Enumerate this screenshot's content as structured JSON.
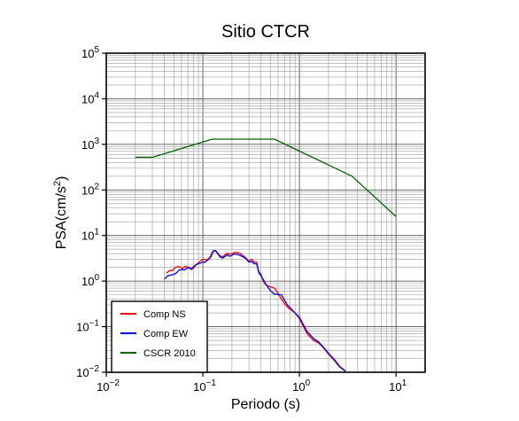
{
  "chart_data": {
    "type": "line",
    "title": "Sitio CTCR",
    "xlabel": "Periodo (s)",
    "ylabel": {
      "base": "PSA(cm/s",
      "sup": "2",
      "tail": ")"
    },
    "x_scale": "log",
    "y_scale": "log",
    "xlim": [
      0.01,
      20
    ],
    "ylim": [
      0.01,
      100000
    ],
    "grid": true,
    "legend_position": "bottom-left",
    "x_ticks": [
      {
        "value": 0.01,
        "base": "10",
        "exp": "−2"
      },
      {
        "value": 0.1,
        "base": "10",
        "exp": "−1"
      },
      {
        "value": 1,
        "base": "10",
        "exp": "0"
      },
      {
        "value": 10,
        "base": "10",
        "exp": "1"
      }
    ],
    "y_ticks": [
      {
        "value": 0.01,
        "base": "10",
        "exp": "−2"
      },
      {
        "value": 0.1,
        "base": "10",
        "exp": "−1"
      },
      {
        "value": 1,
        "base": "10",
        "exp": "0"
      },
      {
        "value": 10,
        "base": "10",
        "exp": "1"
      },
      {
        "value": 100,
        "base": "10",
        "exp": "2"
      },
      {
        "value": 1000,
        "base": "10",
        "exp": "3"
      },
      {
        "value": 10000,
        "base": "10",
        "exp": "4"
      },
      {
        "value": 100000,
        "base": "10",
        "exp": "5"
      }
    ],
    "series": [
      {
        "name": "Comp NS",
        "color": "#ff0000",
        "points": [
          [
            0.042,
            1.5
          ],
          [
            0.045,
            1.7
          ],
          [
            0.048,
            1.7
          ],
          [
            0.052,
            2.0
          ],
          [
            0.055,
            2.1
          ],
          [
            0.058,
            2.0
          ],
          [
            0.062,
            1.9
          ],
          [
            0.066,
            2.1
          ],
          [
            0.07,
            2.0
          ],
          [
            0.075,
            1.85
          ],
          [
            0.08,
            2.1
          ],
          [
            0.085,
            2.3
          ],
          [
            0.09,
            2.5
          ],
          [
            0.095,
            2.8
          ],
          [
            0.1,
            3.0
          ],
          [
            0.105,
            3.0
          ],
          [
            0.11,
            2.9
          ],
          [
            0.115,
            3.1
          ],
          [
            0.12,
            3.5
          ],
          [
            0.125,
            4.3
          ],
          [
            0.13,
            4.6
          ],
          [
            0.135,
            4.7
          ],
          [
            0.14,
            4.3
          ],
          [
            0.15,
            3.6
          ],
          [
            0.16,
            3.4
          ],
          [
            0.17,
            3.8
          ],
          [
            0.18,
            4.1
          ],
          [
            0.19,
            3.9
          ],
          [
            0.2,
            4.0
          ],
          [
            0.21,
            4.2
          ],
          [
            0.22,
            4.3
          ],
          [
            0.24,
            4.1
          ],
          [
            0.26,
            3.6
          ],
          [
            0.28,
            3.2
          ],
          [
            0.3,
            2.7
          ],
          [
            0.32,
            3.0
          ],
          [
            0.34,
            2.6
          ],
          [
            0.36,
            2.6
          ],
          [
            0.38,
            1.6
          ],
          [
            0.4,
            1.4
          ],
          [
            0.42,
            1.0
          ],
          [
            0.45,
            0.82
          ],
          [
            0.5,
            0.75
          ],
          [
            0.55,
            0.7
          ],
          [
            0.6,
            0.54
          ],
          [
            0.65,
            0.4
          ],
          [
            0.7,
            0.32
          ],
          [
            0.75,
            0.27
          ],
          [
            0.8,
            0.24
          ],
          [
            0.9,
            0.2
          ],
          [
            1.0,
            0.15
          ],
          [
            1.1,
            0.1
          ],
          [
            1.2,
            0.07
          ],
          [
            1.4,
            0.05
          ],
          [
            1.6,
            0.043
          ],
          [
            1.8,
            0.033
          ],
          [
            2.0,
            0.025
          ],
          [
            2.3,
            0.018
          ],
          [
            2.6,
            0.013
          ],
          [
            3.0,
            0.0105
          ]
        ]
      },
      {
        "name": "Comp EW",
        "color": "#0000ff",
        "points": [
          [
            0.04,
            1.1
          ],
          [
            0.043,
            1.3
          ],
          [
            0.046,
            1.35
          ],
          [
            0.05,
            1.4
          ],
          [
            0.053,
            1.5
          ],
          [
            0.056,
            1.7
          ],
          [
            0.06,
            1.8
          ],
          [
            0.064,
            1.75
          ],
          [
            0.068,
            1.9
          ],
          [
            0.072,
            2.0
          ],
          [
            0.076,
            1.8
          ],
          [
            0.08,
            1.95
          ],
          [
            0.085,
            2.3
          ],
          [
            0.09,
            2.4
          ],
          [
            0.095,
            2.5
          ],
          [
            0.1,
            2.6
          ],
          [
            0.105,
            2.6
          ],
          [
            0.11,
            2.8
          ],
          [
            0.115,
            3.0
          ],
          [
            0.12,
            3.3
          ],
          [
            0.125,
            4.0
          ],
          [
            0.13,
            4.7
          ],
          [
            0.135,
            4.6
          ],
          [
            0.14,
            4.2
          ],
          [
            0.15,
            3.4
          ],
          [
            0.16,
            3.2
          ],
          [
            0.17,
            3.5
          ],
          [
            0.18,
            3.8
          ],
          [
            0.19,
            3.5
          ],
          [
            0.2,
            3.7
          ],
          [
            0.21,
            3.9
          ],
          [
            0.22,
            3.9
          ],
          [
            0.24,
            3.7
          ],
          [
            0.26,
            3.4
          ],
          [
            0.28,
            3.1
          ],
          [
            0.3,
            2.6
          ],
          [
            0.32,
            2.7
          ],
          [
            0.34,
            2.4
          ],
          [
            0.36,
            2.4
          ],
          [
            0.38,
            1.5
          ],
          [
            0.4,
            1.3
          ],
          [
            0.42,
            1.1
          ],
          [
            0.45,
            0.85
          ],
          [
            0.5,
            0.62
          ],
          [
            0.55,
            0.52
          ],
          [
            0.6,
            0.51
          ],
          [
            0.65,
            0.5
          ],
          [
            0.7,
            0.38
          ],
          [
            0.75,
            0.3
          ],
          [
            0.8,
            0.26
          ],
          [
            0.9,
            0.2
          ],
          [
            1.0,
            0.16
          ],
          [
            1.1,
            0.11
          ],
          [
            1.2,
            0.078
          ],
          [
            1.4,
            0.055
          ],
          [
            1.6,
            0.045
          ],
          [
            1.8,
            0.034
          ],
          [
            2.0,
            0.026
          ],
          [
            2.3,
            0.019
          ],
          [
            2.6,
            0.0135
          ],
          [
            3.0,
            0.0105
          ]
        ]
      },
      {
        "name": "CSCR 2010",
        "color": "#006400",
        "points": [
          [
            0.02,
            520
          ],
          [
            0.03,
            520
          ],
          [
            0.125,
            1300
          ],
          [
            0.55,
            1300
          ],
          [
            3.5,
            200
          ],
          [
            10.0,
            26
          ]
        ]
      }
    ]
  }
}
